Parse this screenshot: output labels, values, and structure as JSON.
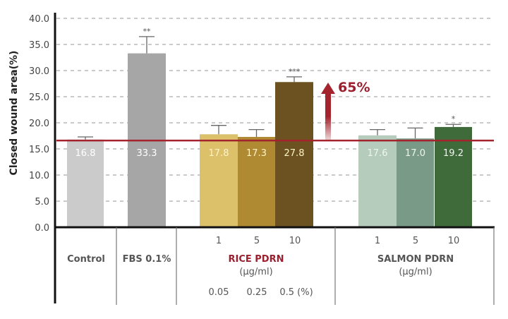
{
  "chart_data": {
    "type": "bar",
    "ylabel": "Closed wound area(%)",
    "ylim": [
      0,
      40
    ],
    "yticks": [
      "0.0",
      "5.0",
      "10.0",
      "15.0",
      "20.0",
      "25.0",
      "30.0",
      "35.0",
      "40.0"
    ],
    "grid": "horizontal dashed",
    "categories": [
      "Control",
      "FBS 0.1%",
      "RICE PDRN 1",
      "RICE PDRN 5",
      "RICE PDRN 10",
      "SALMON PDRN 1",
      "SALMON PDRN 5",
      "SALMON PDRN 10"
    ],
    "values": [
      16.8,
      33.3,
      17.8,
      17.3,
      27.8,
      17.6,
      17.0,
      19.2
    ],
    "labels": [
      "16.8",
      "33.3",
      "17.8",
      "17.3",
      "27.8",
      "17.6",
      "17.0",
      "19.2"
    ],
    "error_upper": [
      17.3,
      36.5,
      19.5,
      18.7,
      28.8,
      18.7,
      19.0,
      19.7
    ],
    "significance": [
      "",
      "**",
      "",
      "",
      "***",
      "",
      "",
      "*"
    ],
    "colors": [
      "#cbcbcb",
      "#a6a6a6",
      "#dcc06a",
      "#b08a33",
      "#6b5220",
      "#b5cbbb",
      "#7a9a88",
      "#3f6b3a"
    ],
    "reference_line": {
      "value": 16.6,
      "color": "#a3242c"
    },
    "annotation": {
      "text": "65%",
      "color": "#9b1f2e"
    },
    "groups": {
      "control": "Control",
      "fbs": "FBS 0.1%",
      "rice": {
        "name": "RICE PDRN",
        "unit": "(µg/ml)",
        "doses": [
          "1",
          "5",
          "10"
        ],
        "percent": [
          "0.05",
          "0.25",
          "0.5 (%)"
        ],
        "color": "#9b1f2e"
      },
      "salmon": {
        "name": "SALMON PDRN",
        "unit": "(µg/ml)",
        "doses": [
          "1",
          "5",
          "10"
        ]
      }
    }
  }
}
